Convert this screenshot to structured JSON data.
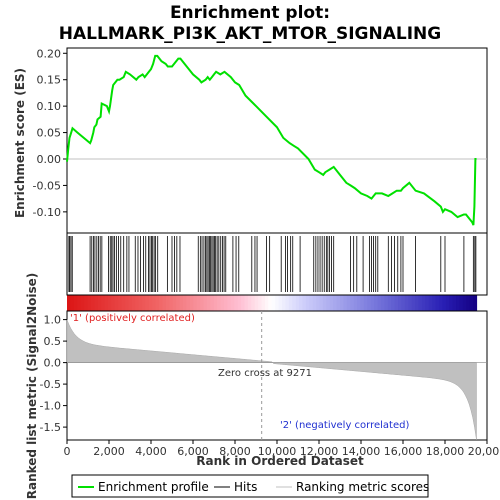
{
  "chart_data": {
    "type": "line",
    "title_line1": "Enrichment plot:",
    "title_line2": "HALLMARK_PI3K_AKT_MTOR_SIGNALING",
    "xlabel": "Rank in Ordered Dataset",
    "ylabel_top": "Enrichment score (ES)",
    "ylabel_bottom": "Ranked list metric (Signal2Noise)",
    "xlim": [
      0,
      20000
    ],
    "ylim_top": [
      -0.14,
      0.21
    ],
    "ylim_bottom": [
      -1.8,
      1.2
    ],
    "x_ticks": [
      "0",
      "2,000",
      "4,000",
      "6,000",
      "8,000",
      "10,000",
      "12,000",
      "14,000",
      "16,000",
      "18,000",
      "20,000"
    ],
    "x_tick_values": [
      0,
      2000,
      4000,
      6000,
      8000,
      10000,
      12000,
      14000,
      16000,
      18000,
      20000
    ],
    "y_ticks_top": [
      "0.20",
      "0.15",
      "0.10",
      "0.05",
      "0.00",
      "-0.05",
      "-0.10"
    ],
    "y_tick_values_top": [
      0.2,
      0.15,
      0.1,
      0.05,
      0.0,
      -0.05,
      -0.1
    ],
    "y_ticks_bottom": [
      "1.0",
      "0.5",
      "0.0",
      "-0.5",
      "-1.0",
      "-1.5"
    ],
    "y_tick_values_bottom": [
      1.0,
      0.5,
      0.0,
      -0.5,
      -1.0,
      -1.5
    ],
    "total_rank": 19500,
    "zero_cross": 9271,
    "zero_cross_label": "Zero cross at 9271",
    "pos_label": "'1' (positively correlated)",
    "neg_label": "'2' (negatively correlated)",
    "series": [
      {
        "name": "Enrichment profile",
        "x": [
          0,
          60,
          120,
          200,
          260,
          500,
          800,
          1100,
          1150,
          1250,
          1300,
          1400,
          1450,
          1600,
          1650,
          1900,
          2000,
          2050,
          2100,
          2150,
          2200,
          2300,
          2400,
          2500,
          2700,
          2800,
          3000,
          3300,
          3400,
          3600,
          3700,
          3900,
          4000,
          4100,
          4200,
          4300,
          4500,
          4700,
          4800,
          5000,
          5100,
          5200,
          5300,
          5400,
          5600,
          5800,
          6000,
          6300,
          6400,
          6600,
          6700,
          6800,
          6900,
          7000,
          7100,
          7300,
          7500,
          7800,
          8000,
          8200,
          8500,
          9000,
          9500,
          10000,
          10300,
          10600,
          10800,
          11000,
          11500,
          11800,
          12000,
          12200,
          12300,
          12500,
          12700,
          13000,
          13300,
          13500,
          13700,
          14000,
          14300,
          14500,
          14700,
          15000,
          15300,
          15500,
          15700,
          15900,
          16000,
          16300,
          16600,
          17000,
          17500,
          17800,
          17900,
          18000,
          18300,
          18600,
          18900,
          19000,
          19300,
          19350,
          19400,
          19450,
          19500
        ],
        "y": [
          -0.005,
          0.02,
          0.04,
          0.05,
          0.058,
          0.05,
          0.04,
          0.03,
          0.035,
          0.05,
          0.06,
          0.065,
          0.075,
          0.08,
          0.105,
          0.1,
          0.09,
          0.1,
          0.115,
          0.13,
          0.14,
          0.145,
          0.15,
          0.15,
          0.155,
          0.165,
          0.16,
          0.15,
          0.155,
          0.16,
          0.155,
          0.165,
          0.17,
          0.18,
          0.195,
          0.195,
          0.185,
          0.18,
          0.175,
          0.175,
          0.18,
          0.185,
          0.19,
          0.19,
          0.18,
          0.17,
          0.16,
          0.15,
          0.145,
          0.15,
          0.155,
          0.15,
          0.155,
          0.16,
          0.165,
          0.16,
          0.165,
          0.155,
          0.145,
          0.14,
          0.12,
          0.1,
          0.08,
          0.06,
          0.04,
          0.03,
          0.025,
          0.02,
          0.0,
          -0.02,
          -0.025,
          -0.03,
          -0.025,
          -0.02,
          -0.015,
          -0.03,
          -0.045,
          -0.05,
          -0.055,
          -0.065,
          -0.07,
          -0.075,
          -0.065,
          -0.065,
          -0.07,
          -0.065,
          -0.06,
          -0.06,
          -0.055,
          -0.045,
          -0.06,
          -0.065,
          -0.08,
          -0.09,
          -0.1,
          -0.095,
          -0.1,
          -0.11,
          -0.105,
          -0.105,
          -0.12,
          -0.125,
          -0.09,
          0.0,
          0.0
        ]
      }
    ],
    "hits": [
      90,
      130,
      190,
      250,
      1100,
      1180,
      1260,
      1330,
      1420,
      1500,
      1580,
      1660,
      1980,
      2060,
      2130,
      2190,
      2260,
      2350,
      2450,
      2560,
      2700,
      2850,
      2950,
      3250,
      3380,
      3500,
      3640,
      3750,
      3880,
      3950,
      4020,
      4080,
      4150,
      4220,
      4320,
      4780,
      5000,
      5120,
      5230,
      5380,
      6250,
      6350,
      6430,
      6520,
      6600,
      6660,
      6720,
      6780,
      6840,
      6900,
      6960,
      7020,
      7080,
      7150,
      7230,
      7320,
      7400,
      7480,
      7560,
      7900,
      8050,
      8180,
      8800,
      8950,
      9050,
      9500,
      9650,
      10200,
      10400,
      10500,
      10650,
      10750,
      11100,
      11750,
      11850,
      11950,
      12050,
      12150,
      12250,
      12350,
      12420,
      12500,
      12600,
      12700,
      13500,
      13650,
      13800,
      14100,
      14400,
      14500,
      14600,
      14700,
      14800,
      15300,
      15450,
      15600,
      15750,
      15900,
      16000,
      16600,
      17800,
      18000,
      18900,
      19350,
      19420,
      19470
    ]
  },
  "legend": {
    "profile_label": "Enrichment profile",
    "hits_label": "Hits",
    "metric_label": "Ranking metric scores",
    "profile_color": "#00e000",
    "hits_color": "#000000",
    "metric_color": "#c0c0c0"
  }
}
